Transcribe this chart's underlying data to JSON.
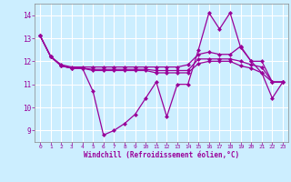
{
  "xlabel": "Windchill (Refroidissement éolien,°C)",
  "background_color": "#cceeff",
  "grid_color": "#ffffff",
  "line_color": "#990099",
  "ylim": [
    8.5,
    14.5
  ],
  "xlim": [
    -0.5,
    23.5
  ],
  "yticks": [
    9,
    10,
    11,
    12,
    13,
    14
  ],
  "xticks": [
    0,
    1,
    2,
    3,
    4,
    5,
    6,
    7,
    8,
    9,
    10,
    11,
    12,
    13,
    14,
    15,
    16,
    17,
    18,
    19,
    20,
    21,
    22,
    23
  ],
  "series1": [
    13.1,
    12.2,
    11.8,
    11.7,
    11.7,
    10.7,
    8.8,
    9.0,
    9.3,
    9.7,
    10.4,
    11.1,
    9.6,
    11.0,
    11.0,
    12.5,
    14.1,
    13.4,
    14.1,
    12.6,
    12.0,
    11.5,
    10.4,
    11.1
  ],
  "series2": [
    13.1,
    12.2,
    11.85,
    11.75,
    11.75,
    11.75,
    11.75,
    11.75,
    11.75,
    11.75,
    11.75,
    11.75,
    11.75,
    11.75,
    11.85,
    12.3,
    12.4,
    12.3,
    12.3,
    12.65,
    12.0,
    12.0,
    11.1,
    11.1
  ],
  "series3": [
    13.1,
    12.2,
    11.8,
    11.7,
    11.7,
    11.65,
    11.65,
    11.65,
    11.65,
    11.65,
    11.65,
    11.6,
    11.6,
    11.6,
    11.6,
    12.1,
    12.1,
    12.1,
    12.1,
    12.0,
    11.85,
    11.75,
    11.1,
    11.1
  ],
  "series4": [
    13.1,
    12.2,
    11.8,
    11.7,
    11.7,
    11.6,
    11.6,
    11.6,
    11.6,
    11.6,
    11.6,
    11.5,
    11.5,
    11.5,
    11.5,
    11.9,
    12.0,
    12.0,
    12.0,
    11.8,
    11.7,
    11.5,
    11.1,
    11.1
  ]
}
